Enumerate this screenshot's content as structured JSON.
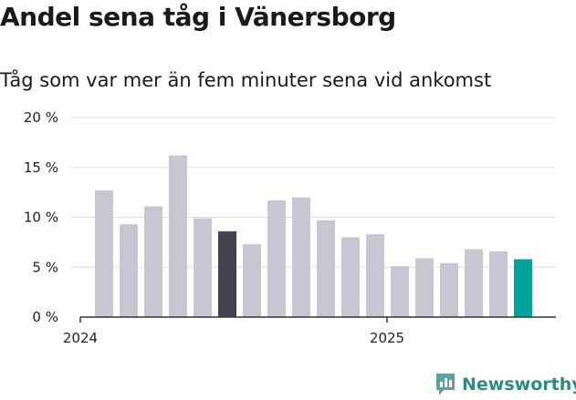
{
  "title": "Andel sena tåg i Vänersborg",
  "subtitle": "Tåg som var mer än fem minuter sena vid ankomst",
  "brand": {
    "name": "Newsworthy",
    "color": "#2a8a84"
  },
  "colors": {
    "default_bar": "#c8c6d3",
    "highlight_dark": "#44434f",
    "highlight_accent": "#00a39a",
    "grid": "#dddddd",
    "axis": "#333333"
  },
  "chart_data": {
    "type": "bar",
    "title": "Andel sena tåg i Vänersborg",
    "subtitle": "Tåg som var mer än fem minuter sena vid ankomst",
    "xlabel": "",
    "ylabel": "",
    "ylim": [
      0,
      20
    ],
    "yticks": [
      0,
      5,
      10,
      15,
      20
    ],
    "ytick_labels": [
      "0 %",
      "5 %",
      "10 %",
      "15 %",
      "20 %"
    ],
    "grid": true,
    "x_tick_labels": [
      {
        "label": "2024",
        "index": 0
      },
      {
        "label": "2025",
        "index": 12
      }
    ],
    "categories": [
      "2024-01",
      "2024-02",
      "2024-03",
      "2024-04",
      "2024-05",
      "2024-06",
      "2024-07",
      "2024-08",
      "2024-09",
      "2024-10",
      "2024-11",
      "2024-12",
      "2025-01",
      "2025-02",
      "2025-03",
      "2025-04",
      "2025-05",
      "2025-06"
    ],
    "values": [
      12.7,
      9.3,
      11.1,
      16.2,
      9.9,
      8.6,
      7.3,
      11.7,
      12.0,
      9.7,
      8.0,
      8.3,
      5.1,
      5.9,
      5.4,
      6.8,
      6.6,
      5.8
    ],
    "highlight": {
      "5": "highlight_dark",
      "17": "highlight_accent"
    }
  }
}
